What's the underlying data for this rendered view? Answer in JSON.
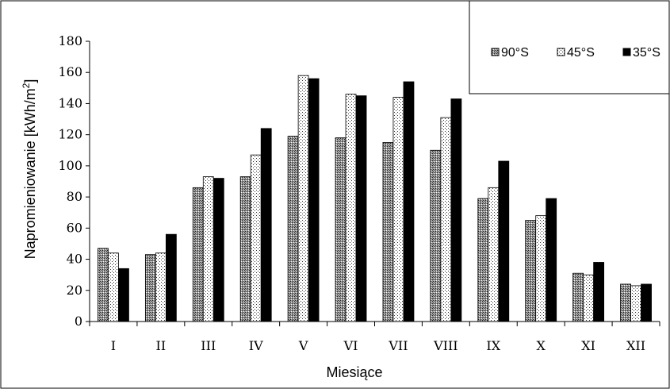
{
  "chart_data": {
    "type": "bar",
    "title": "",
    "xlabel": "Miesiące",
    "ylabel": "Napromieniowanie [kWh/m²]",
    "ylabel_parts": {
      "base": "Napromieniowanie [kWh/m",
      "sup": "2",
      "close": "]"
    },
    "ylim": [
      0,
      180
    ],
    "yticks": [
      0,
      20,
      40,
      60,
      80,
      100,
      120,
      140,
      160,
      180
    ],
    "grid": false,
    "legend_position": "top-right",
    "categories": [
      "I",
      "II",
      "III",
      "IV",
      "V",
      "VI",
      "VII",
      "VIII",
      "IX",
      "X",
      "XI",
      "XII"
    ],
    "series": [
      {
        "name": "90°S",
        "pattern": "crosshatch",
        "color": "#555555",
        "values": [
          47,
          43,
          86,
          93,
          119,
          118,
          115,
          110,
          79,
          65,
          31,
          24
        ]
      },
      {
        "name": "45°S",
        "pattern": "dotted",
        "color": "#ffffff",
        "values": [
          44,
          44,
          93,
          107,
          158,
          146,
          144,
          131,
          86,
          68,
          30,
          23
        ]
      },
      {
        "name": "35°S",
        "pattern": "solid",
        "color": "#000000",
        "values": [
          34,
          56,
          92,
          124,
          156,
          145,
          154,
          143,
          103,
          79,
          38,
          24
        ]
      }
    ]
  }
}
